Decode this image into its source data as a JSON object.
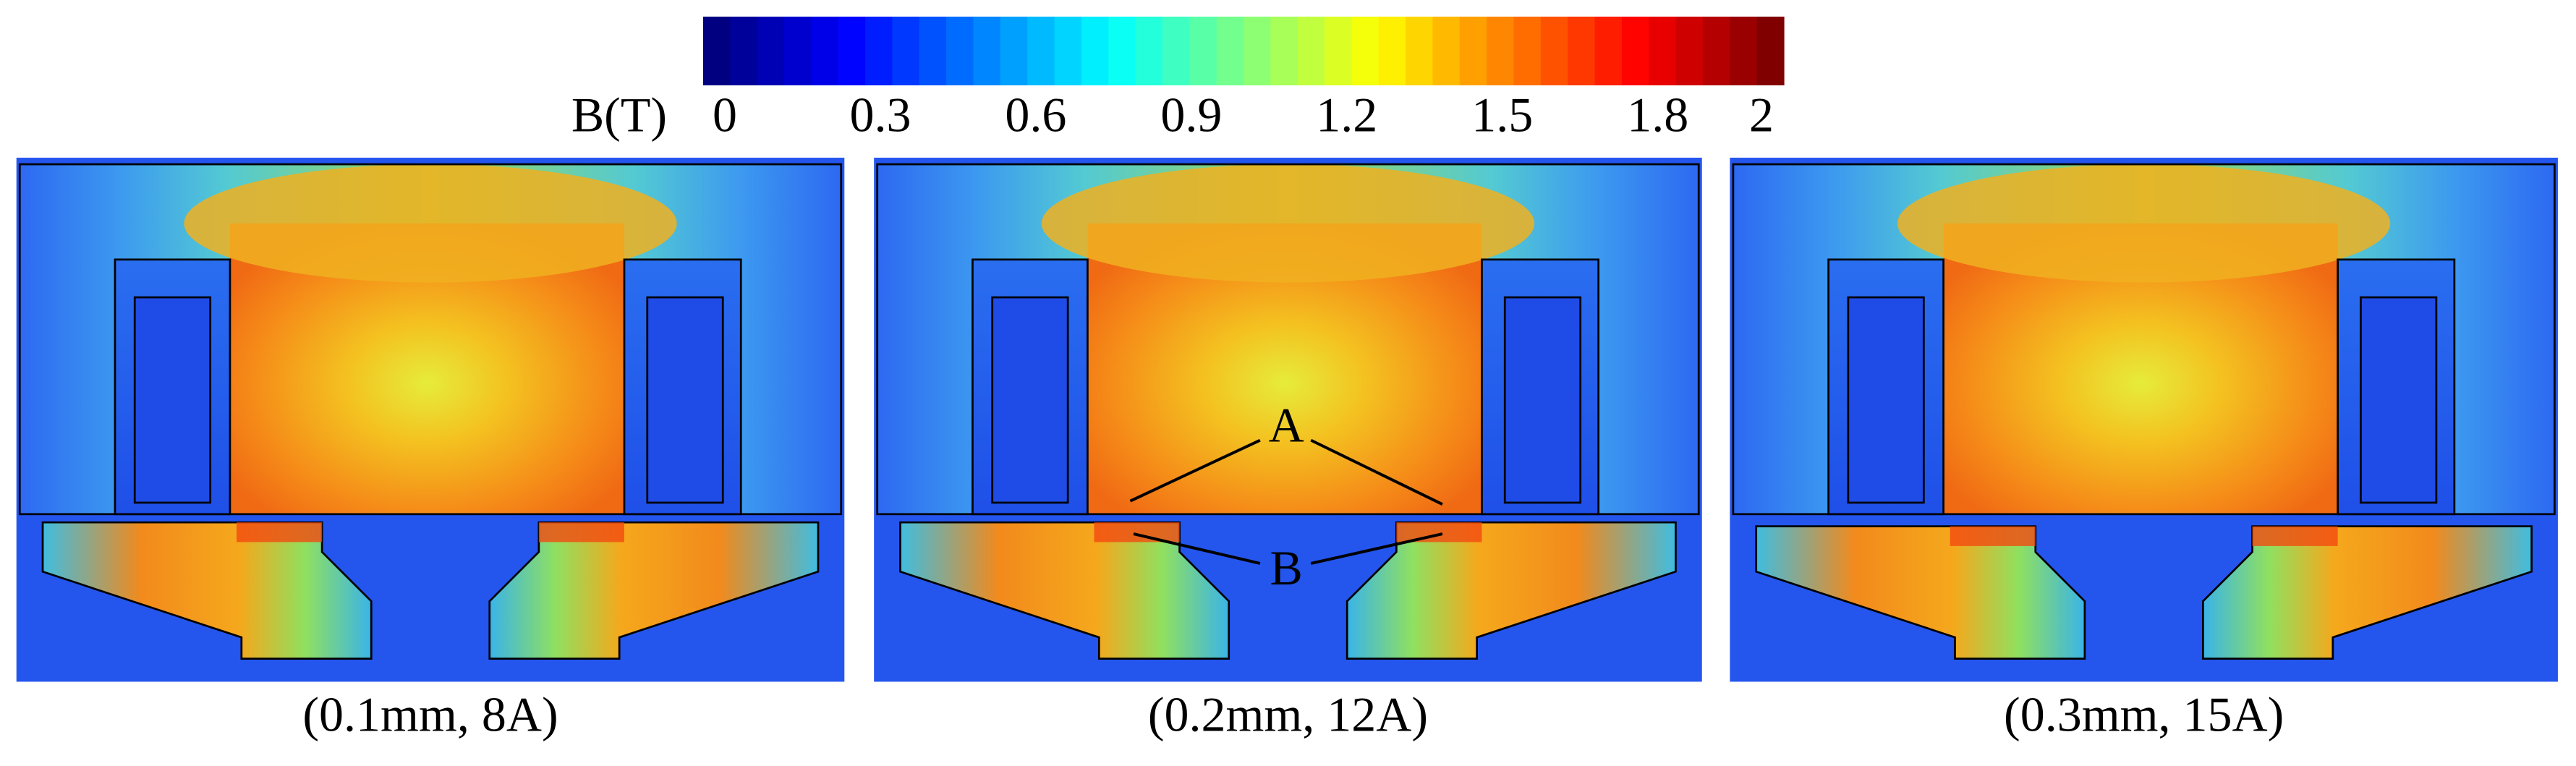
{
  "colorbar": {
    "label": "B(T)",
    "range": [
      0,
      2
    ],
    "ticks": [
      0,
      0.3,
      0.6,
      0.9,
      1.2,
      1.5,
      1.8,
      2
    ]
  },
  "panels": [
    {
      "caption": "(0.1mm, 8A)"
    },
    {
      "caption": "(0.2mm, 12A)",
      "annotations": [
        "A",
        "B"
      ]
    },
    {
      "caption": "(0.3mm, 15A)"
    }
  ]
}
